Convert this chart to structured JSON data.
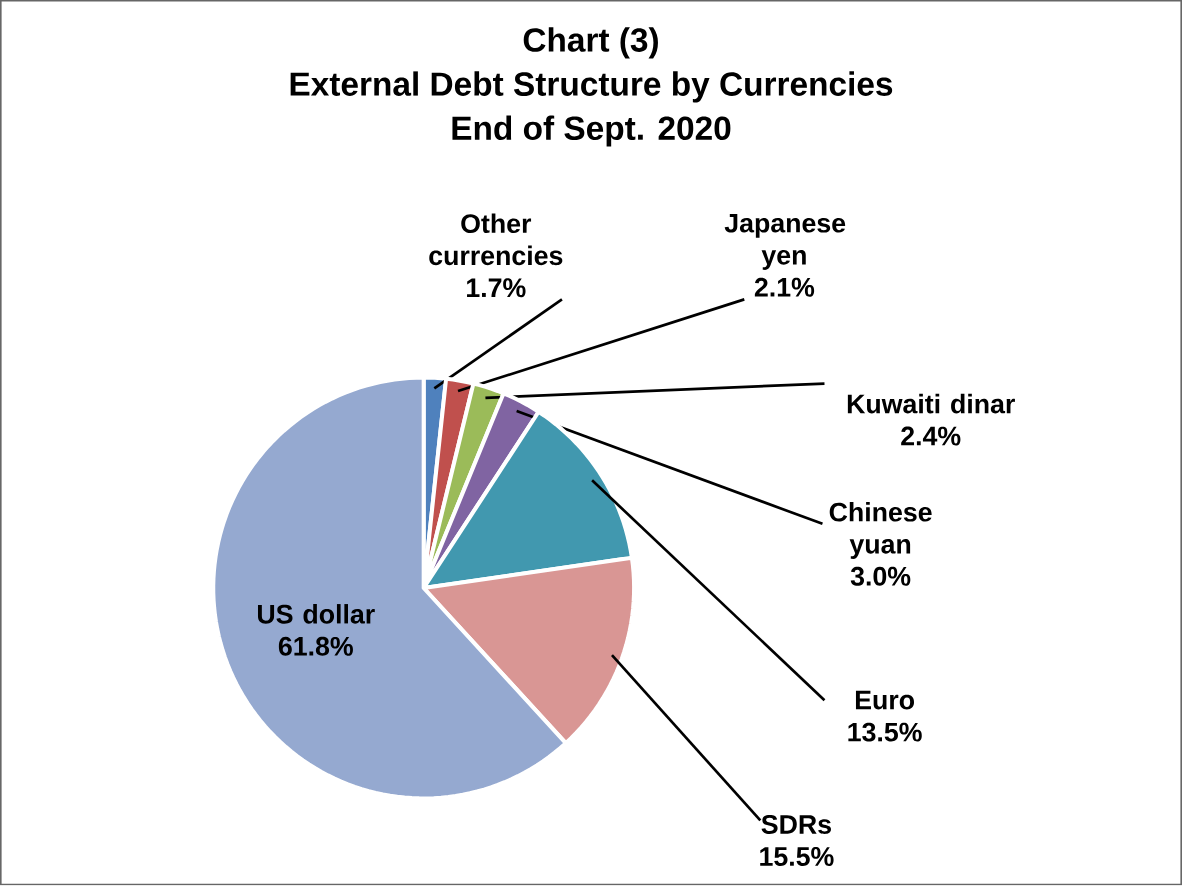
{
  "chart_data": {
    "type": "pie",
    "title": "External Debt Structure by Currencies",
    "subtitle": "End of Sept. 2020",
    "annotations": [
      "Chart (3)"
    ],
    "categories": [
      "Other currencies",
      "Japanese yen",
      "Kuwaiti dinar",
      "Chinese yuan",
      "Euro",
      "SDRs",
      "US dollar"
    ],
    "values": [
      1.7,
      2.1,
      2.4,
      3.0,
      13.5,
      15.5,
      61.8
    ],
    "value_labels": [
      "1.7%",
      "2.1%",
      "2.4%",
      "3.0%",
      "13.5%",
      "15.5%",
      "61.8%"
    ],
    "colors": [
      "#4f81bd",
      "#c0504d",
      "#9bbb59",
      "#8064a2",
      "#4198af",
      "#d99694",
      "#95a9d0"
    ]
  }
}
